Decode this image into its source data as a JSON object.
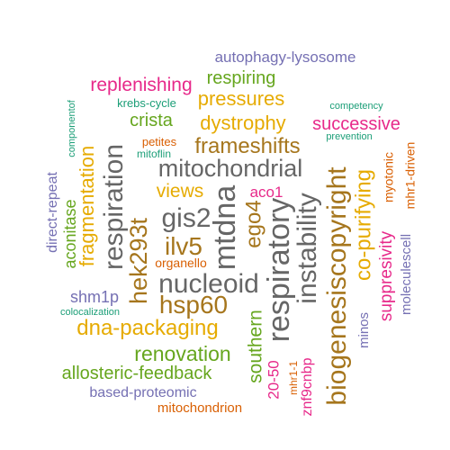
{
  "palette": {
    "teal": "#1b9e77",
    "orange": "#d95f02",
    "purple": "#7570b3",
    "magenta": "#e7298a",
    "green": "#66a61e",
    "gold": "#e6ab02",
    "brown": "#a6761d",
    "gray": "#666666"
  },
  "words": [
    {
      "text": "autophagy-lysosome",
      "color": "purple"
    },
    {
      "text": "respiring",
      "color": "green"
    },
    {
      "text": "replenishing",
      "color": "magenta"
    },
    {
      "text": "pressures",
      "color": "gold"
    },
    {
      "text": "krebs-cycle",
      "color": "teal"
    },
    {
      "text": "competency",
      "color": "teal"
    },
    {
      "text": "componentof",
      "color": "teal"
    },
    {
      "text": "crista",
      "color": "green"
    },
    {
      "text": "dystrophy",
      "color": "gold"
    },
    {
      "text": "successive",
      "color": "magenta"
    },
    {
      "text": "prevention",
      "color": "teal"
    },
    {
      "text": "petites",
      "color": "orange"
    },
    {
      "text": "frameshifts",
      "color": "brown"
    },
    {
      "text": "mitoflin",
      "color": "teal"
    },
    {
      "text": "mitochondrial",
      "color": "gray"
    },
    {
      "text": "fragmentation",
      "color": "gold"
    },
    {
      "text": "direct-repeat",
      "color": "purple"
    },
    {
      "text": "respiration",
      "color": "gray"
    },
    {
      "text": "views",
      "color": "gold"
    },
    {
      "text": "aco1",
      "color": "magenta"
    },
    {
      "text": "myotonic",
      "color": "orange"
    },
    {
      "text": "mhr1-driven",
      "color": "orange"
    },
    {
      "text": "aconitase",
      "color": "green"
    },
    {
      "text": "gis2",
      "color": "gray"
    },
    {
      "text": "mtdna",
      "color": "gray"
    },
    {
      "text": "ego4",
      "color": "brown"
    },
    {
      "text": "biogenesiscopyright",
      "color": "brown"
    },
    {
      "text": "co-purifying",
      "color": "gold"
    },
    {
      "text": "hek293t",
      "color": "brown"
    },
    {
      "text": "ilv5",
      "color": "brown"
    },
    {
      "text": "organello",
      "color": "orange"
    },
    {
      "text": "respiratory",
      "color": "gray"
    },
    {
      "text": "instability",
      "color": "gray"
    },
    {
      "text": "suppresivity",
      "color": "magenta"
    },
    {
      "text": "moleculescell",
      "color": "purple"
    },
    {
      "text": "nucleoid",
      "color": "gray"
    },
    {
      "text": "shm1p",
      "color": "purple"
    },
    {
      "text": "colocalization",
      "color": "teal"
    },
    {
      "text": "hsp60",
      "color": "brown"
    },
    {
      "text": "minos",
      "color": "purple"
    },
    {
      "text": "dna-packaging",
      "color": "gold"
    },
    {
      "text": "southern",
      "color": "green"
    },
    {
      "text": "renovation",
      "color": "green"
    },
    {
      "text": "allosteric-feedback",
      "color": "green"
    },
    {
      "text": "20-50",
      "color": "magenta"
    },
    {
      "text": "mhr1-1",
      "color": "orange"
    },
    {
      "text": "znf9cnbp",
      "color": "magenta"
    },
    {
      "text": "based-proteomic",
      "color": "purple"
    },
    {
      "text": "mitochondrion",
      "color": "orange"
    }
  ]
}
